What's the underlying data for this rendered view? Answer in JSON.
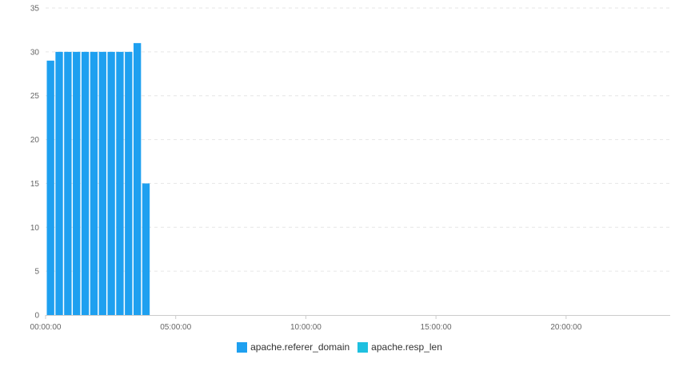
{
  "chart_data": {
    "type": "bar",
    "stacked": true,
    "x": [
      "00:00:00",
      "00:20:00",
      "00:40:00",
      "01:00:00",
      "01:20:00",
      "01:40:00",
      "02:00:00",
      "02:20:00",
      "02:40:00",
      "03:00:00",
      "03:20:00",
      "03:40:00",
      "04:00:00"
    ],
    "series": [
      {
        "name": "apache.referer_domain",
        "color": "#1ea0f0",
        "values": [
          29,
          30,
          30,
          30,
          30,
          30,
          30,
          30,
          30,
          30,
          31,
          15,
          0
        ]
      },
      {
        "name": "apache.resp_len",
        "color": "#1ec0e0",
        "values": [
          0,
          0,
          0,
          0,
          0,
          0,
          0,
          0,
          0,
          0,
          0,
          0,
          0
        ]
      }
    ],
    "xticks": [
      "00:00:00",
      "05:00:00",
      "10:00:00",
      "15:00:00",
      "20:00:00"
    ],
    "yticks": [
      "0",
      "5",
      "10",
      "15",
      "20",
      "25",
      "30",
      "35"
    ],
    "xlim": [
      "00:00:00",
      "24:00:00"
    ],
    "ylim": [
      0,
      35
    ],
    "grid": true,
    "legend_position": "bottom-center",
    "title": "",
    "xlabel": "",
    "ylabel": ""
  }
}
